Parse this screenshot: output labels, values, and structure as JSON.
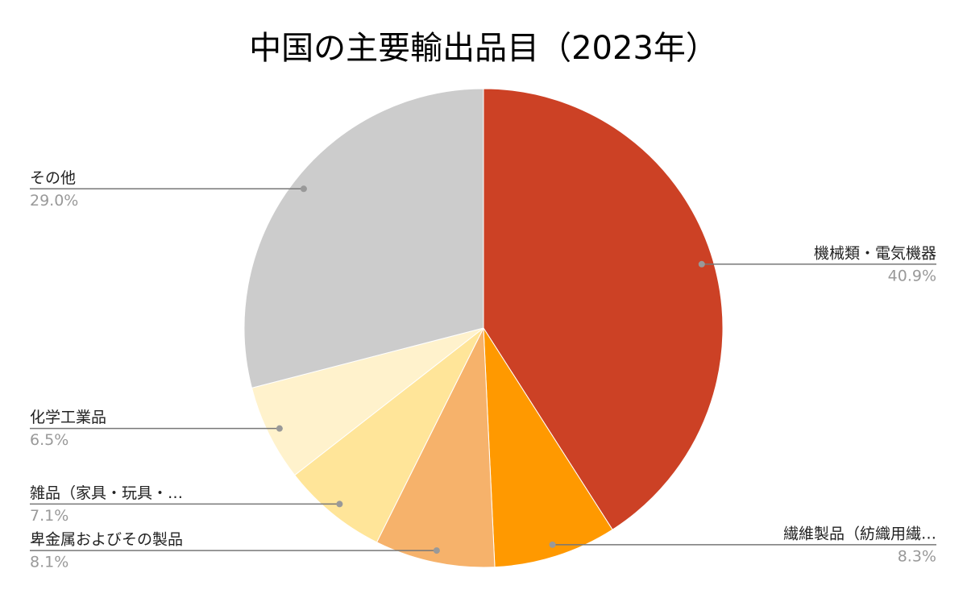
{
  "chart_data": {
    "type": "pie",
    "title": "中国の主要輸出品目（2023年）",
    "categories": [
      "機械類・電気機器",
      "繊維製品（紡織用繊…",
      "卑金属およびその製品",
      "雑品（家具・玩具・…",
      "化学工業品",
      "その他"
    ],
    "values": [
      40.9,
      8.3,
      8.1,
      7.1,
      6.5,
      29.0
    ],
    "value_labels": [
      "40.9%",
      "8.3%",
      "8.1%",
      "7.1%",
      "6.5%",
      "29.0%"
    ],
    "colors": [
      "#cc4125",
      "#ff9900",
      "#f6b26b",
      "#ffe599",
      "#fff2cc",
      "#cccccc"
    ]
  }
}
